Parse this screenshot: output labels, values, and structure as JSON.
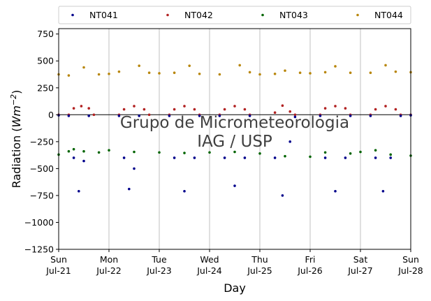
{
  "chart_data": {
    "type": "scatter",
    "title": "",
    "xlabel": "Day",
    "ylabel_main": "Radiation (",
    "ylabel_unit": "Wm",
    "ylabel_exp": "−2",
    "ylabel_close": ")",
    "ylim": [
      -1250,
      800
    ],
    "xlim": [
      0,
      7
    ],
    "grid": "vertical",
    "legend_position": "top",
    "watermark": [
      "Grupo de Micrometeorologia",
      "IAG / USP"
    ],
    "yticks": [
      {
        "value": 750,
        "label": "750"
      },
      {
        "value": 500,
        "label": "500"
      },
      {
        "value": 250,
        "label": "250"
      },
      {
        "value": 0,
        "label": "0"
      },
      {
        "value": -250,
        "label": "−250"
      },
      {
        "value": -500,
        "label": "−500"
      },
      {
        "value": -750,
        "label": "−750"
      },
      {
        "value": -1000,
        "label": "−1000"
      },
      {
        "value": -1250,
        "label": "−1250"
      }
    ],
    "xticks": [
      {
        "value": 0,
        "day": "Sun",
        "date": "Jul-21"
      },
      {
        "value": 1,
        "day": "Mon",
        "date": "Jul-22"
      },
      {
        "value": 2,
        "day": "Tue",
        "date": "Jul-23"
      },
      {
        "value": 3,
        "day": "Wed",
        "date": "Jul-24"
      },
      {
        "value": 4,
        "day": "Thu",
        "date": "Jul-25"
      },
      {
        "value": 5,
        "day": "Fri",
        "date": "Jul-26"
      },
      {
        "value": 6,
        "day": "Sat",
        "date": "Jul-27"
      },
      {
        "value": 7,
        "day": "Sun",
        "date": "Jul-28"
      }
    ],
    "series": [
      {
        "name": "NT041",
        "color": "#00008b",
        "points": [
          [
            0,
            -5
          ],
          [
            0.2,
            -10
          ],
          [
            0.3,
            -400
          ],
          [
            0.4,
            -710
          ],
          [
            0.5,
            -430
          ],
          [
            0.6,
            -10
          ],
          [
            1.2,
            -10
          ],
          [
            1.3,
            -400
          ],
          [
            1.4,
            -690
          ],
          [
            1.5,
            -500
          ],
          [
            1.6,
            -10
          ],
          [
            2.2,
            -10
          ],
          [
            2.3,
            -400
          ],
          [
            2.5,
            -710
          ],
          [
            2.7,
            -400
          ],
          [
            2.8,
            -10
          ],
          [
            3.2,
            -10
          ],
          [
            3.3,
            -400
          ],
          [
            3.5,
            -660
          ],
          [
            3.7,
            -400
          ],
          [
            3.8,
            -10
          ],
          [
            4.3,
            -400
          ],
          [
            4.45,
            -750
          ],
          [
            4.6,
            -250
          ],
          [
            4.7,
            -20
          ],
          [
            5.2,
            -10
          ],
          [
            5.3,
            -400
          ],
          [
            5.5,
            -710
          ],
          [
            5.7,
            -400
          ],
          [
            5.8,
            -10
          ],
          [
            6.2,
            -10
          ],
          [
            6.3,
            -400
          ],
          [
            6.45,
            -710
          ],
          [
            6.6,
            -400
          ],
          [
            6.8,
            -10
          ],
          [
            7,
            -5
          ]
        ]
      },
      {
        "name": "NT042",
        "color": "#b22222",
        "points": [
          [
            0,
            0
          ],
          [
            0.2,
            0
          ],
          [
            0.3,
            60
          ],
          [
            0.45,
            80
          ],
          [
            0.6,
            60
          ],
          [
            0.7,
            0
          ],
          [
            1.2,
            0
          ],
          [
            1.3,
            50
          ],
          [
            1.5,
            80
          ],
          [
            1.7,
            50
          ],
          [
            1.8,
            0
          ],
          [
            2.2,
            0
          ],
          [
            2.3,
            50
          ],
          [
            2.5,
            80
          ],
          [
            2.7,
            50
          ],
          [
            2.8,
            0
          ],
          [
            3.2,
            0
          ],
          [
            3.3,
            50
          ],
          [
            3.5,
            80
          ],
          [
            3.7,
            50
          ],
          [
            3.8,
            0
          ],
          [
            4.3,
            20
          ],
          [
            4.45,
            85
          ],
          [
            4.6,
            30
          ],
          [
            4.7,
            0
          ],
          [
            5.2,
            0
          ],
          [
            5.3,
            60
          ],
          [
            5.5,
            80
          ],
          [
            5.7,
            60
          ],
          [
            5.8,
            0
          ],
          [
            6.2,
            0
          ],
          [
            6.3,
            50
          ],
          [
            6.5,
            80
          ],
          [
            6.7,
            50
          ],
          [
            6.8,
            0
          ],
          [
            7,
            0
          ]
        ]
      },
      {
        "name": "NT043",
        "color": "#006400",
        "points": [
          [
            0,
            -370
          ],
          [
            0.2,
            -340
          ],
          [
            0.3,
            -320
          ],
          [
            0.5,
            -340
          ],
          [
            0.8,
            -350
          ],
          [
            1,
            -330
          ],
          [
            1.5,
            -345
          ],
          [
            2,
            -350
          ],
          [
            2.5,
            -355
          ],
          [
            3,
            -350
          ],
          [
            3.5,
            -345
          ],
          [
            4,
            -360
          ],
          [
            4.5,
            -385
          ],
          [
            5,
            -390
          ],
          [
            5.3,
            -350
          ],
          [
            5.8,
            -360
          ],
          [
            6,
            -345
          ],
          [
            6.3,
            -330
          ],
          [
            6.6,
            -370
          ],
          [
            7,
            -380
          ]
        ]
      },
      {
        "name": "NT044",
        "color": "#b8860b",
        "points": [
          [
            0,
            375
          ],
          [
            0.2,
            365
          ],
          [
            0.5,
            440
          ],
          [
            0.8,
            375
          ],
          [
            1,
            380
          ],
          [
            1.2,
            400
          ],
          [
            1.6,
            455
          ],
          [
            1.8,
            390
          ],
          [
            2,
            385
          ],
          [
            2.3,
            390
          ],
          [
            2.6,
            455
          ],
          [
            2.8,
            380
          ],
          [
            3.2,
            375
          ],
          [
            3.6,
            460
          ],
          [
            3.8,
            395
          ],
          [
            4,
            375
          ],
          [
            4.3,
            380
          ],
          [
            4.5,
            410
          ],
          [
            4.8,
            390
          ],
          [
            5,
            385
          ],
          [
            5.3,
            395
          ],
          [
            5.5,
            450
          ],
          [
            5.8,
            390
          ],
          [
            6.2,
            390
          ],
          [
            6.5,
            460
          ],
          [
            6.7,
            400
          ],
          [
            7,
            395
          ]
        ]
      }
    ]
  }
}
